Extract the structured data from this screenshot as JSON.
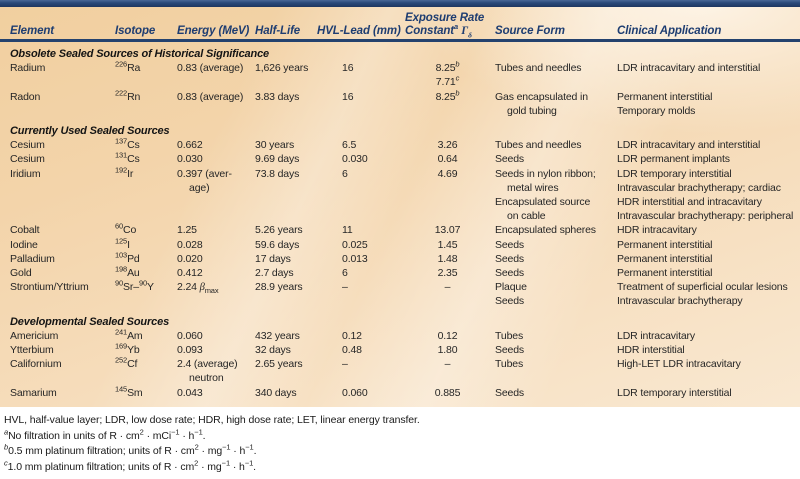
{
  "colors": {
    "accent_navy": "#24426e",
    "header_text": "#1e3d71",
    "body_text": "#262626",
    "background_peach": "#f1cf9f",
    "background_peach_light": "#f9e8d1",
    "footnote_background": "#ffffff"
  },
  "table": {
    "columns": [
      {
        "key": "element",
        "label": "Element"
      },
      {
        "key": "isotope",
        "label": "Isotope"
      },
      {
        "key": "energy",
        "label": "Energy (MeV)"
      },
      {
        "key": "half_life",
        "label": "Half-Life"
      },
      {
        "key": "hvl",
        "label": "HVL-Lead (mm)"
      },
      {
        "key": "exposure",
        "label": {
          "lines": [
            "Exposure Rate",
            {
              "seg": [
                {
                  "t": "Constant"
                },
                {
                  "t": "a",
                  "sup": true,
                  "i": true
                },
                {
                  "t": " "
                },
                {
                  "t": "Γ",
                  "i": true,
                  "serif": true
                },
                {
                  "t": "δ",
                  "sub": true,
                  "i": true,
                  "serif": true
                }
              ]
            }
          ]
        }
      },
      {
        "key": "source_form",
        "label": "Source Form"
      },
      {
        "key": "clinical",
        "label": "Clinical Application"
      }
    ],
    "sections": [
      {
        "title": "Obsolete Sealed Sources of Historical Significance",
        "rows": [
          {
            "element": "Radium",
            "isotope": {
              "seg": [
                {
                  "t": "226",
                  "sup": true
                },
                {
                  "t": "Ra"
                }
              ]
            },
            "energy": "0.83 (average)",
            "half_life": "1,626 years",
            "hvl": "16",
            "exposure": {
              "lines": [
                {
                  "seg": [
                    {
                      "t": "8.25"
                    },
                    {
                      "t": "b",
                      "sup": true,
                      "i": true
                    }
                  ]
                },
                {
                  "seg": [
                    {
                      "t": "7.71"
                    },
                    {
                      "t": "c",
                      "sup": true,
                      "i": true
                    }
                  ]
                }
              ]
            },
            "source_form": {
              "lines": [
                "Tubes and needles"
              ]
            },
            "clinical": {
              "lines": [
                "LDR intracavitary and interstitial"
              ]
            }
          },
          {
            "element": "Radon",
            "isotope": {
              "seg": [
                {
                  "t": "222",
                  "sup": true
                },
                {
                  "t": "Rn"
                }
              ]
            },
            "energy": "0.83 (average)",
            "half_life": "3.83 days",
            "hvl": "16",
            "exposure": {
              "lines": [
                {
                  "seg": [
                    {
                      "t": "8.25"
                    },
                    {
                      "t": "b",
                      "sup": true,
                      "i": true
                    }
                  ]
                }
              ]
            },
            "source_form": {
              "lines": [
                "Gas encapsulated in",
                {
                  "text": "gold tubing",
                  "indent": true
                }
              ]
            },
            "clinical": {
              "lines": [
                "Permanent interstitial",
                "Temporary molds"
              ]
            }
          }
        ]
      },
      {
        "title": "Currently Used Sealed Sources",
        "rows": [
          {
            "element": "Cesium",
            "isotope": {
              "seg": [
                {
                  "t": "137",
                  "sup": true
                },
                {
                  "t": "Cs"
                }
              ]
            },
            "energy": "0.662",
            "half_life": "30 years",
            "hvl": "6.5",
            "exposure": "3.26",
            "source_form": {
              "lines": [
                "Tubes and needles"
              ]
            },
            "clinical": {
              "lines": [
                "LDR intracavitary and interstitial"
              ]
            }
          },
          {
            "element": "Cesium",
            "isotope": {
              "seg": [
                {
                  "t": "131",
                  "sup": true
                },
                {
                  "t": "Cs"
                }
              ]
            },
            "energy": "0.030",
            "half_life": "9.69 days",
            "hvl": "0.030",
            "exposure": "0.64",
            "source_form": {
              "lines": [
                "Seeds"
              ]
            },
            "clinical": {
              "lines": [
                "LDR permanent implants"
              ]
            }
          },
          {
            "element": "Iridium",
            "isotope": {
              "seg": [
                {
                  "t": "192",
                  "sup": true
                },
                {
                  "t": "Ir"
                }
              ]
            },
            "energy": {
              "lines": [
                "0.397 (aver-",
                {
                  "text": "age)",
                  "indent": true
                }
              ]
            },
            "half_life": "73.8 days",
            "hvl": "6",
            "exposure": "4.69",
            "source_form": {
              "lines": [
                "Seeds in nylon ribbon;",
                {
                  "text": "metal wires",
                  "indent": true
                },
                "Encapsulated source",
                {
                  "text": "on cable",
                  "indent": true
                }
              ]
            },
            "clinical": {
              "lines": [
                "LDR temporary interstitial",
                "Intravascular brachytherapy; cardiac",
                "HDR interstitial and intracavitary",
                "Intravascular brachytherapy: peripheral"
              ]
            }
          },
          {
            "element": "Cobalt",
            "isotope": {
              "seg": [
                {
                  "t": "60",
                  "sup": true
                },
                {
                  "t": "Co"
                }
              ]
            },
            "energy": "1.25",
            "half_life": "5.26 years",
            "hvl": "11",
            "exposure": "13.07",
            "source_form": {
              "lines": [
                "Encapsulated spheres"
              ]
            },
            "clinical": {
              "lines": [
                "HDR intracavitary"
              ]
            }
          },
          {
            "element": "Iodine",
            "isotope": {
              "seg": [
                {
                  "t": "125",
                  "sup": true
                },
                {
                  "t": "I"
                }
              ]
            },
            "energy": "0.028",
            "half_life": "59.6 days",
            "hvl": "0.025",
            "exposure": "1.45",
            "source_form": {
              "lines": [
                "Seeds"
              ]
            },
            "clinical": {
              "lines": [
                "Permanent interstitial"
              ]
            }
          },
          {
            "element": "Palladium",
            "isotope": {
              "seg": [
                {
                  "t": "103",
                  "sup": true
                },
                {
                  "t": "Pd"
                }
              ]
            },
            "energy": "0.020",
            "half_life": "17 days",
            "hvl": "0.013",
            "exposure": "1.48",
            "source_form": {
              "lines": [
                "Seeds"
              ]
            },
            "clinical": {
              "lines": [
                "Permanent interstitial"
              ]
            }
          },
          {
            "element": "Gold",
            "isotope": {
              "seg": [
                {
                  "t": "198",
                  "sup": true
                },
                {
                  "t": "Au"
                }
              ]
            },
            "energy": "0.412",
            "half_life": "2.7 days",
            "hvl": "6",
            "exposure": "2.35",
            "source_form": {
              "lines": [
                "Seeds"
              ]
            },
            "clinical": {
              "lines": [
                "Permanent interstitial"
              ]
            }
          },
          {
            "element": "Strontium/Yttrium",
            "isotope": {
              "seg": [
                {
                  "t": "90",
                  "sup": true
                },
                {
                  "t": "Sr–"
                },
                {
                  "t": "90",
                  "sup": true
                },
                {
                  "t": "Y"
                }
              ]
            },
            "energy": {
              "seg": [
                {
                  "t": "2.24 "
                },
                {
                  "t": "β",
                  "i": true,
                  "serif": true
                },
                {
                  "t": "max",
                  "sub": true
                }
              ]
            },
            "half_life": "28.9 years",
            "hvl": "–",
            "exposure": "–",
            "source_form": {
              "lines": [
                "Plaque",
                "Seeds"
              ]
            },
            "clinical": {
              "lines": [
                "Treatment of superficial ocular lesions",
                "Intravascular brachytherapy"
              ]
            }
          }
        ]
      },
      {
        "title": "Developmental Sealed Sources",
        "rows": [
          {
            "element": "Americium",
            "isotope": {
              "seg": [
                {
                  "t": "241",
                  "sup": true
                },
                {
                  "t": "Am"
                }
              ]
            },
            "energy": "0.060",
            "half_life": "432 years",
            "hvl": "0.12",
            "exposure": "0.12",
            "source_form": {
              "lines": [
                "Tubes"
              ]
            },
            "clinical": {
              "lines": [
                "LDR intracavitary"
              ]
            }
          },
          {
            "element": "Ytterbium",
            "isotope": {
              "seg": [
                {
                  "t": "169",
                  "sup": true
                },
                {
                  "t": "Yb"
                }
              ]
            },
            "energy": "0.093",
            "half_life": "32 days",
            "hvl": "0.48",
            "exposure": "1.80",
            "source_form": {
              "lines": [
                "Seeds"
              ]
            },
            "clinical": {
              "lines": [
                "HDR interstitial"
              ]
            }
          },
          {
            "element": "Californium",
            "isotope": {
              "seg": [
                {
                  "t": "252",
                  "sup": true
                },
                {
                  "t": "Cf"
                }
              ]
            },
            "energy": {
              "lines": [
                "2.4 (average)",
                {
                  "text": "neutron",
                  "indent": true
                }
              ]
            },
            "half_life": "2.65 years",
            "hvl": "–",
            "exposure": "–",
            "source_form": {
              "lines": [
                "Tubes"
              ]
            },
            "clinical": {
              "lines": [
                "High-LET LDR intracavitary"
              ]
            }
          },
          {
            "element": "Samarium",
            "isotope": {
              "seg": [
                {
                  "t": "145",
                  "sup": true
                },
                {
                  "t": "Sm"
                }
              ]
            },
            "energy": "0.043",
            "half_life": "340 days",
            "hvl": "0.060",
            "exposure": "0.885",
            "source_form": {
              "lines": [
                "Seeds"
              ]
            },
            "clinical": {
              "lines": [
                "LDR temporary interstitial"
              ]
            }
          }
        ]
      }
    ]
  },
  "footnotes": [
    "HVL, half-value layer; LDR, low dose rate; HDR, high dose rate; LET, linear energy transfer.",
    {
      "seg": [
        {
          "t": "a",
          "sup": true,
          "i": true
        },
        {
          "t": "No filtration in units of R · cm"
        },
        {
          "t": "2",
          "sup": true
        },
        {
          "t": " · mCi"
        },
        {
          "t": "−1",
          "sup": true
        },
        {
          "t": " · h"
        },
        {
          "t": "−1",
          "sup": true
        },
        {
          "t": "."
        }
      ]
    },
    {
      "seg": [
        {
          "t": "b",
          "sup": true,
          "i": true
        },
        {
          "t": "0.5 mm platinum filtration; units of R · cm"
        },
        {
          "t": "2",
          "sup": true
        },
        {
          "t": " · mg"
        },
        {
          "t": "−1",
          "sup": true
        },
        {
          "t": " · h"
        },
        {
          "t": "−1",
          "sup": true
        },
        {
          "t": "."
        }
      ]
    },
    {
      "seg": [
        {
          "t": "c",
          "sup": true,
          "i": true
        },
        {
          "t": "1.0 mm platinum filtration; units of R · cm"
        },
        {
          "t": "2",
          "sup": true
        },
        {
          "t": " · mg"
        },
        {
          "t": "−1",
          "sup": true
        },
        {
          "t": " · h"
        },
        {
          "t": "−1",
          "sup": true
        },
        {
          "t": "."
        }
      ]
    }
  ]
}
